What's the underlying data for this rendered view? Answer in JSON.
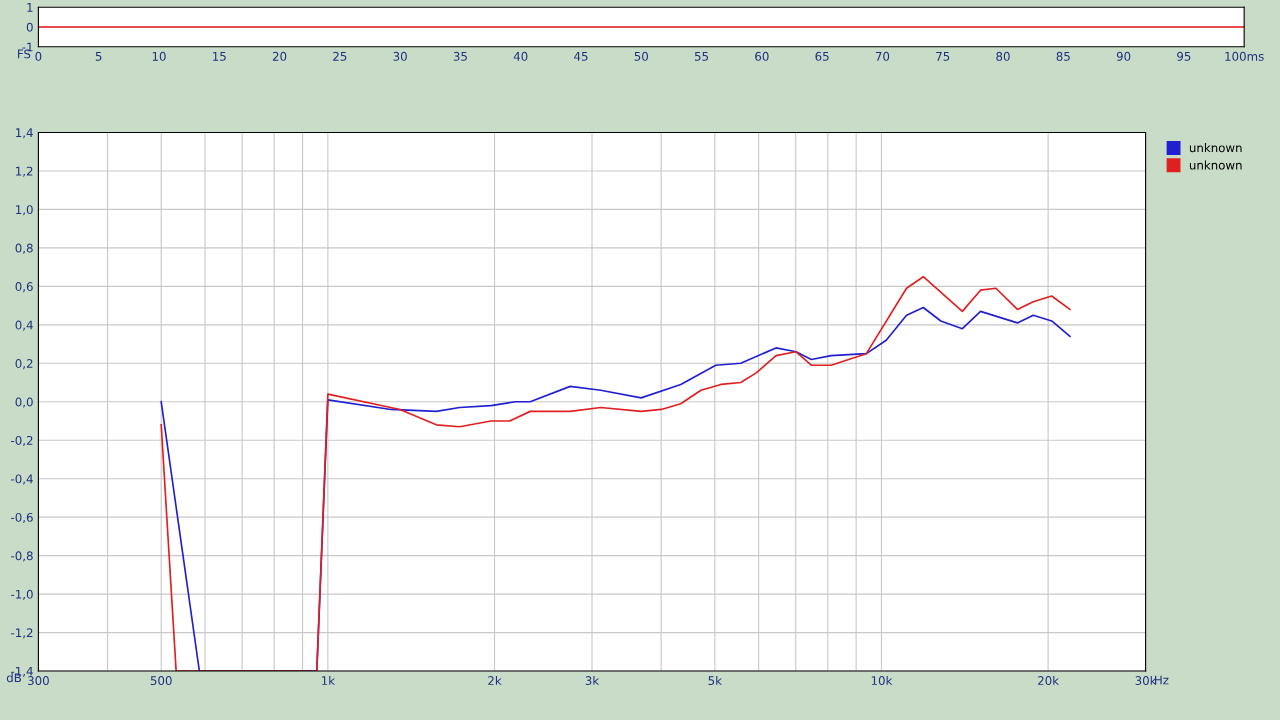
{
  "chart_data": [
    {
      "type": "line",
      "ylabel": "FS",
      "x": [
        0,
        100
      ],
      "series": [
        {
          "color": "#e01010",
          "values": [
            0,
            0
          ]
        }
      ],
      "xlim": [
        0,
        100
      ],
      "ylim": [
        -1,
        1
      ],
      "xticks": [
        0,
        5,
        10,
        15,
        20,
        25,
        30,
        35,
        40,
        45,
        50,
        55,
        60,
        65,
        70,
        75,
        80,
        85,
        90,
        95,
        {
          "value": 100,
          "label": "100ms"
        }
      ],
      "yticks": [
        -1,
        0,
        1
      ],
      "grid": false,
      "legend": false
    },
    {
      "type": "line",
      "ylabel": "dB",
      "log": "x",
      "xlim": [
        300,
        30000
      ],
      "ylim": [
        -1.4,
        1.4
      ],
      "xticks": [
        {
          "value": 300,
          "label": "300"
        },
        {
          "value": 400,
          "label": null
        },
        {
          "value": 500,
          "label": "500"
        },
        {
          "value": 600,
          "label": null
        },
        {
          "value": 700,
          "label": null
        },
        {
          "value": 800,
          "label": null
        },
        {
          "value": 900,
          "label": null
        },
        {
          "value": 1000,
          "label": "1k"
        },
        {
          "value": 2000,
          "label": "2k"
        },
        {
          "value": 3000,
          "label": "3k"
        },
        {
          "value": 4000,
          "label": null
        },
        {
          "value": 5000,
          "label": "5k"
        },
        {
          "value": 6000,
          "label": null
        },
        {
          "value": 7000,
          "label": null
        },
        {
          "value": 8000,
          "label": null
        },
        {
          "value": 9000,
          "label": null
        },
        {
          "value": 10000,
          "label": "10k"
        },
        {
          "value": 20000,
          "label": "20k"
        },
        {
          "value": 30000,
          "label": "30k"
        }
      ],
      "xlabel": "Hz",
      "yticks": [
        {
          "value": -1.4,
          "label": "-1,4"
        },
        {
          "value": -1.2,
          "label": "-1,2"
        },
        {
          "value": -1.0,
          "label": "-1,0"
        },
        {
          "value": -0.8,
          "label": "-0,8"
        },
        {
          "value": -0.6,
          "label": "-0,6"
        },
        {
          "value": -0.4,
          "label": "-0,4"
        },
        {
          "value": -0.2,
          "label": "-0,2"
        },
        {
          "value": 0,
          "label": "0,0"
        },
        {
          "value": 0.2,
          "label": "0,2"
        },
        {
          "value": 0.4,
          "label": "0,4"
        },
        {
          "value": 0.6,
          "label": "0,6"
        },
        {
          "value": 0.8,
          "label": "0,8"
        },
        {
          "value": 1.0,
          "label": "1,0"
        },
        {
          "value": 1.2,
          "label": "1,2"
        },
        {
          "value": 1.4,
          "label": "1,4"
        }
      ],
      "grid": true,
      "legend": "right",
      "series": [
        {
          "name": "unknown",
          "color": "#2020d0",
          "x": [
            500,
            586,
            955,
            1000,
            1300,
            1570,
            1730,
            1970,
            2180,
            2320,
            2740,
            3110,
            3680,
            4340,
            5020,
            5570,
            6450,
            7010,
            7470,
            8110,
            9390,
            10200,
            11100,
            11900,
            12800,
            14000,
            15100,
            17600,
            18800,
            20300,
            21900
          ],
          "values": [
            0.0,
            -1.4,
            -1.4,
            0.01,
            -0.04,
            -0.05,
            -0.03,
            -0.02,
            0.0,
            0.0,
            0.08,
            0.06,
            0.02,
            0.09,
            0.19,
            0.2,
            0.28,
            0.26,
            0.22,
            0.24,
            0.25,
            0.32,
            0.45,
            0.49,
            0.42,
            0.38,
            0.47,
            0.41,
            0.45,
            0.42,
            0.34
          ]
        },
        {
          "name": "unknown",
          "color": "#e02020",
          "x": [
            500,
            532,
            955,
            1000,
            1350,
            1570,
            1730,
            1970,
            2130,
            2320,
            2740,
            3110,
            3680,
            4000,
            4340,
            4720,
            5130,
            5570,
            5940,
            6450,
            7010,
            7470,
            8110,
            9390,
            11100,
            11900,
            14000,
            15100,
            16100,
            17600,
            18800,
            20300,
            21900
          ],
          "values": [
            -0.12,
            -1.4,
            -1.4,
            0.04,
            -0.04,
            -0.12,
            -0.13,
            -0.1,
            -0.1,
            -0.05,
            -0.05,
            -0.03,
            -0.05,
            -0.04,
            -0.01,
            0.06,
            0.09,
            0.1,
            0.15,
            0.24,
            0.26,
            0.19,
            0.19,
            0.25,
            0.59,
            0.65,
            0.47,
            0.58,
            0.59,
            0.48,
            0.52,
            0.55,
            0.48
          ]
        }
      ]
    }
  ]
}
